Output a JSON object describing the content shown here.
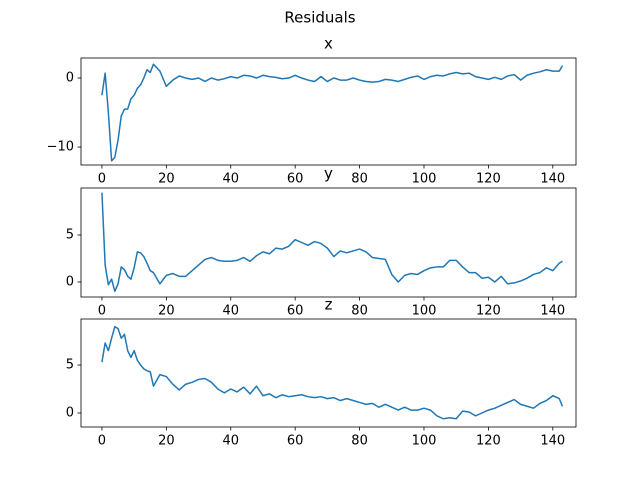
{
  "title": "Residuals",
  "chart_data": [
    {
      "type": "line",
      "title": "x",
      "color": "#1f77b4",
      "x": [
        0,
        1,
        2,
        3,
        4,
        5,
        6,
        7,
        8,
        9,
        10,
        11,
        12,
        13,
        14,
        15,
        16,
        18,
        20,
        22,
        24,
        26,
        28,
        30,
        32,
        34,
        36,
        38,
        40,
        42,
        44,
        46,
        48,
        50,
        52,
        54,
        56,
        58,
        60,
        62,
        64,
        66,
        68,
        70,
        72,
        74,
        76,
        78,
        80,
        82,
        84,
        86,
        88,
        90,
        92,
        94,
        96,
        98,
        100,
        102,
        104,
        106,
        108,
        110,
        112,
        114,
        116,
        118,
        120,
        122,
        124,
        126,
        128,
        130,
        132,
        134,
        136,
        138,
        140,
        142,
        143
      ],
      "values": [
        -2.5,
        0.7,
        -5,
        -12,
        -11.5,
        -9,
        -5.5,
        -4.5,
        -4.5,
        -3,
        -2.5,
        -1.5,
        -1,
        0,
        1.2,
        0.8,
        2,
        1,
        -1.2,
        -0.3,
        0.3,
        0,
        -0.2,
        0,
        -0.5,
        0,
        -0.3,
        -0.1,
        0.2,
        0,
        0.4,
        0.3,
        0,
        0.4,
        0.2,
        0.1,
        -0.1,
        0,
        0.4,
        0,
        -0.3,
        -0.5,
        0.2,
        -0.5,
        0,
        -0.3,
        -0.3,
        0,
        -0.3,
        -0.5,
        -0.6,
        -0.5,
        -0.2,
        -0.3,
        -0.5,
        -0.2,
        0.1,
        0.3,
        -0.2,
        0.2,
        0.4,
        0.3,
        0.6,
        0.8,
        0.6,
        0.7,
        0.2,
        0,
        -0.2,
        0.1,
        -0.2,
        0.3,
        0.5,
        -0.3,
        0.4,
        0.7,
        0.9,
        1.2,
        1.0,
        1.0,
        1.8
      ],
      "xlim": [
        -6.5,
        147.2
      ],
      "xticks": [
        0,
        20,
        40,
        60,
        80,
        100,
        120,
        140
      ],
      "ylim": [
        -12.6,
        2.9
      ],
      "yticks": [
        {
          "value": -10,
          "label": "−10"
        },
        0
      ]
    },
    {
      "type": "line",
      "title": "y",
      "color": "#1f77b4",
      "x": [
        0,
        1,
        2,
        3,
        4,
        5,
        6,
        7,
        8,
        9,
        10,
        11,
        12,
        13,
        14,
        15,
        16,
        18,
        20,
        22,
        24,
        26,
        28,
        30,
        32,
        34,
        36,
        38,
        40,
        42,
        44,
        46,
        48,
        50,
        52,
        54,
        56,
        58,
        60,
        62,
        64,
        66,
        68,
        70,
        72,
        74,
        76,
        78,
        80,
        82,
        84,
        86,
        88,
        90,
        92,
        94,
        96,
        98,
        100,
        102,
        104,
        106,
        108,
        110,
        112,
        114,
        116,
        118,
        120,
        122,
        124,
        126,
        128,
        130,
        132,
        134,
        136,
        138,
        140,
        142,
        143
      ],
      "values": [
        9.5,
        1.8,
        -0.3,
        0.3,
        -1,
        -0.2,
        1.6,
        1.3,
        0.6,
        0.3,
        1.5,
        3.2,
        3.1,
        2.7,
        2,
        1.2,
        1.0,
        -0.2,
        0.7,
        0.9,
        0.6,
        0.6,
        1.2,
        1.8,
        2.4,
        2.6,
        2.3,
        2.2,
        2.2,
        2.3,
        2.6,
        2.2,
        2.8,
        3.2,
        3.0,
        3.6,
        3.5,
        3.8,
        4.5,
        4.2,
        3.9,
        4.3,
        4.1,
        3.6,
        2.7,
        3.3,
        3.1,
        3.3,
        3.5,
        3.2,
        2.6,
        2.5,
        2.4,
        0.8,
        0,
        0.7,
        0.9,
        0.8,
        1.2,
        1.5,
        1.6,
        1.6,
        2.3,
        2.3,
        1.6,
        1.0,
        1.0,
        0.4,
        0.5,
        0.0,
        0.6,
        -0.2,
        -0.1,
        0.1,
        0.4,
        0.8,
        1.0,
        1.5,
        1.2,
        2.0,
        2.2
      ],
      "xlim": [
        -6.5,
        147.2
      ],
      "xticks": [
        0,
        20,
        40,
        60,
        80,
        100,
        120,
        140
      ],
      "ylim": [
        -1.6,
        10.0
      ],
      "yticks": [
        0,
        5
      ]
    },
    {
      "type": "line",
      "title": "z",
      "color": "#1f77b4",
      "x": [
        0,
        1,
        2,
        3,
        4,
        5,
        6,
        7,
        8,
        9,
        10,
        11,
        12,
        13,
        14,
        15,
        16,
        18,
        20,
        22,
        24,
        26,
        28,
        30,
        32,
        34,
        36,
        38,
        40,
        42,
        44,
        46,
        48,
        50,
        52,
        54,
        56,
        58,
        60,
        62,
        64,
        66,
        68,
        70,
        72,
        74,
        76,
        78,
        80,
        82,
        84,
        86,
        88,
        90,
        92,
        94,
        96,
        98,
        100,
        102,
        104,
        106,
        108,
        110,
        112,
        114,
        116,
        118,
        120,
        122,
        124,
        126,
        128,
        130,
        132,
        134,
        136,
        138,
        140,
        142,
        143
      ],
      "values": [
        5.3,
        7.3,
        6.5,
        7.8,
        9.0,
        8.8,
        7.8,
        8.2,
        6.5,
        5.8,
        6.5,
        5.5,
        5.0,
        4.6,
        4.4,
        4.3,
        2.8,
        4.0,
        3.8,
        3.0,
        2.4,
        3.0,
        3.2,
        3.5,
        3.6,
        3.2,
        2.5,
        2.1,
        2.5,
        2.2,
        2.7,
        2.0,
        2.8,
        1.8,
        2.0,
        1.6,
        1.9,
        1.7,
        1.8,
        1.9,
        1.7,
        1.6,
        1.7,
        1.5,
        1.6,
        1.3,
        1.5,
        1.3,
        1.1,
        0.9,
        1.0,
        0.6,
        0.9,
        0.6,
        0.3,
        0.6,
        0.3,
        0.3,
        0.5,
        0.3,
        -0.3,
        -0.6,
        -0.5,
        -0.6,
        0.2,
        0.1,
        -0.3,
        0,
        0.3,
        0.5,
        0.8,
        1.1,
        1.4,
        0.9,
        0.7,
        0.5,
        1.0,
        1.3,
        1.8,
        1.5,
        0.7
      ],
      "xlim": [
        -6.5,
        147.2
      ],
      "xticks": [
        0,
        20,
        40,
        60,
        80,
        100,
        120,
        140
      ],
      "ylim": [
        -1.46,
        9.8
      ],
      "yticks": [
        0,
        5
      ]
    }
  ]
}
